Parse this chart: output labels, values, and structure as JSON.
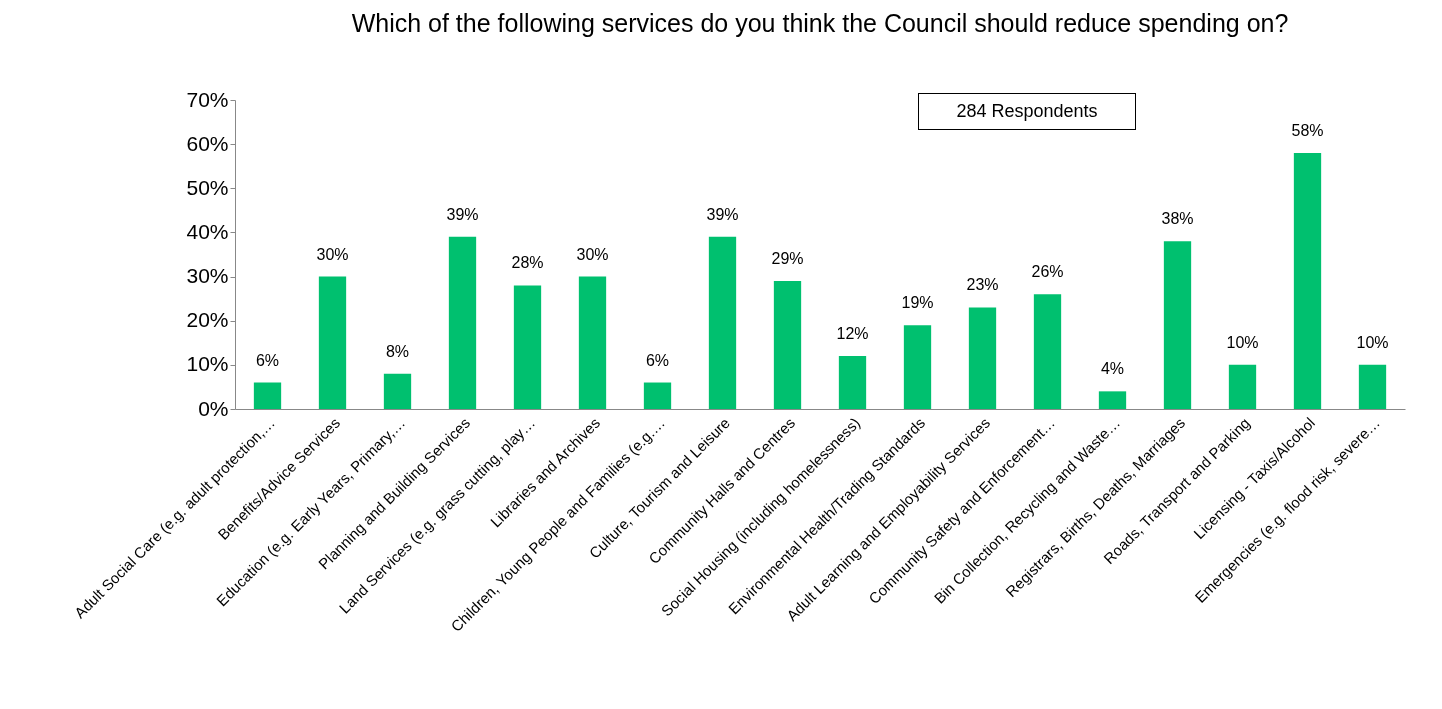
{
  "chart_data": {
    "type": "bar",
    "title": "Which of the following services do you think the Council should reduce spending on?",
    "categories": [
      "Adult Social Care (e.g. adult protection,…",
      "Benefits/Advice Services",
      "Education (e.g. Early Years, Primary,…",
      "Planning and Building Services",
      "Land Services (e.g. grass cutting, play…",
      "Libraries and Archives",
      "Children, Young People and Families (e.g.…",
      "Culture, Tourism and Leisure",
      "Community Halls and Centres",
      "Social Housing (including homelessness)",
      "Environmental Health/Trading Standards",
      "Adult Learning and Employability Services",
      "Community Safety and Enforcement…",
      "Bin Collection, Recycling and Waste…",
      "Registrars, Births, Deaths, Marriages",
      "Roads, Transport and Parking",
      "Licensing - Taxis/Alcohol",
      "Emergencies (e.g. flood risk, severe…"
    ],
    "values": [
      6,
      30,
      8,
      39,
      28,
      30,
      6,
      39,
      29,
      12,
      19,
      23,
      26,
      4,
      38,
      10,
      58,
      10
    ],
    "value_labels": [
      "6%",
      "30%",
      "8%",
      "39%",
      "28%",
      "30%",
      "6%",
      "39%",
      "29%",
      "12%",
      "19%",
      "23%",
      "26%",
      "4%",
      "38%",
      "10%",
      "58%",
      "10%"
    ],
    "color": "#00c06f",
    "ylim": [
      0,
      70
    ],
    "yticks": [
      {
        "value": 0,
        "label": "0%"
      },
      {
        "value": 10,
        "label": "10%"
      },
      {
        "value": 20,
        "label": "20%"
      },
      {
        "value": 30,
        "label": "30%"
      },
      {
        "value": 40,
        "label": "40%"
      },
      {
        "value": 50,
        "label": "50%"
      },
      {
        "value": 60,
        "label": "60%"
      },
      {
        "value": 70,
        "label": "70%"
      }
    ],
    "annotations": [
      "284 Respondents"
    ],
    "grid": false
  }
}
